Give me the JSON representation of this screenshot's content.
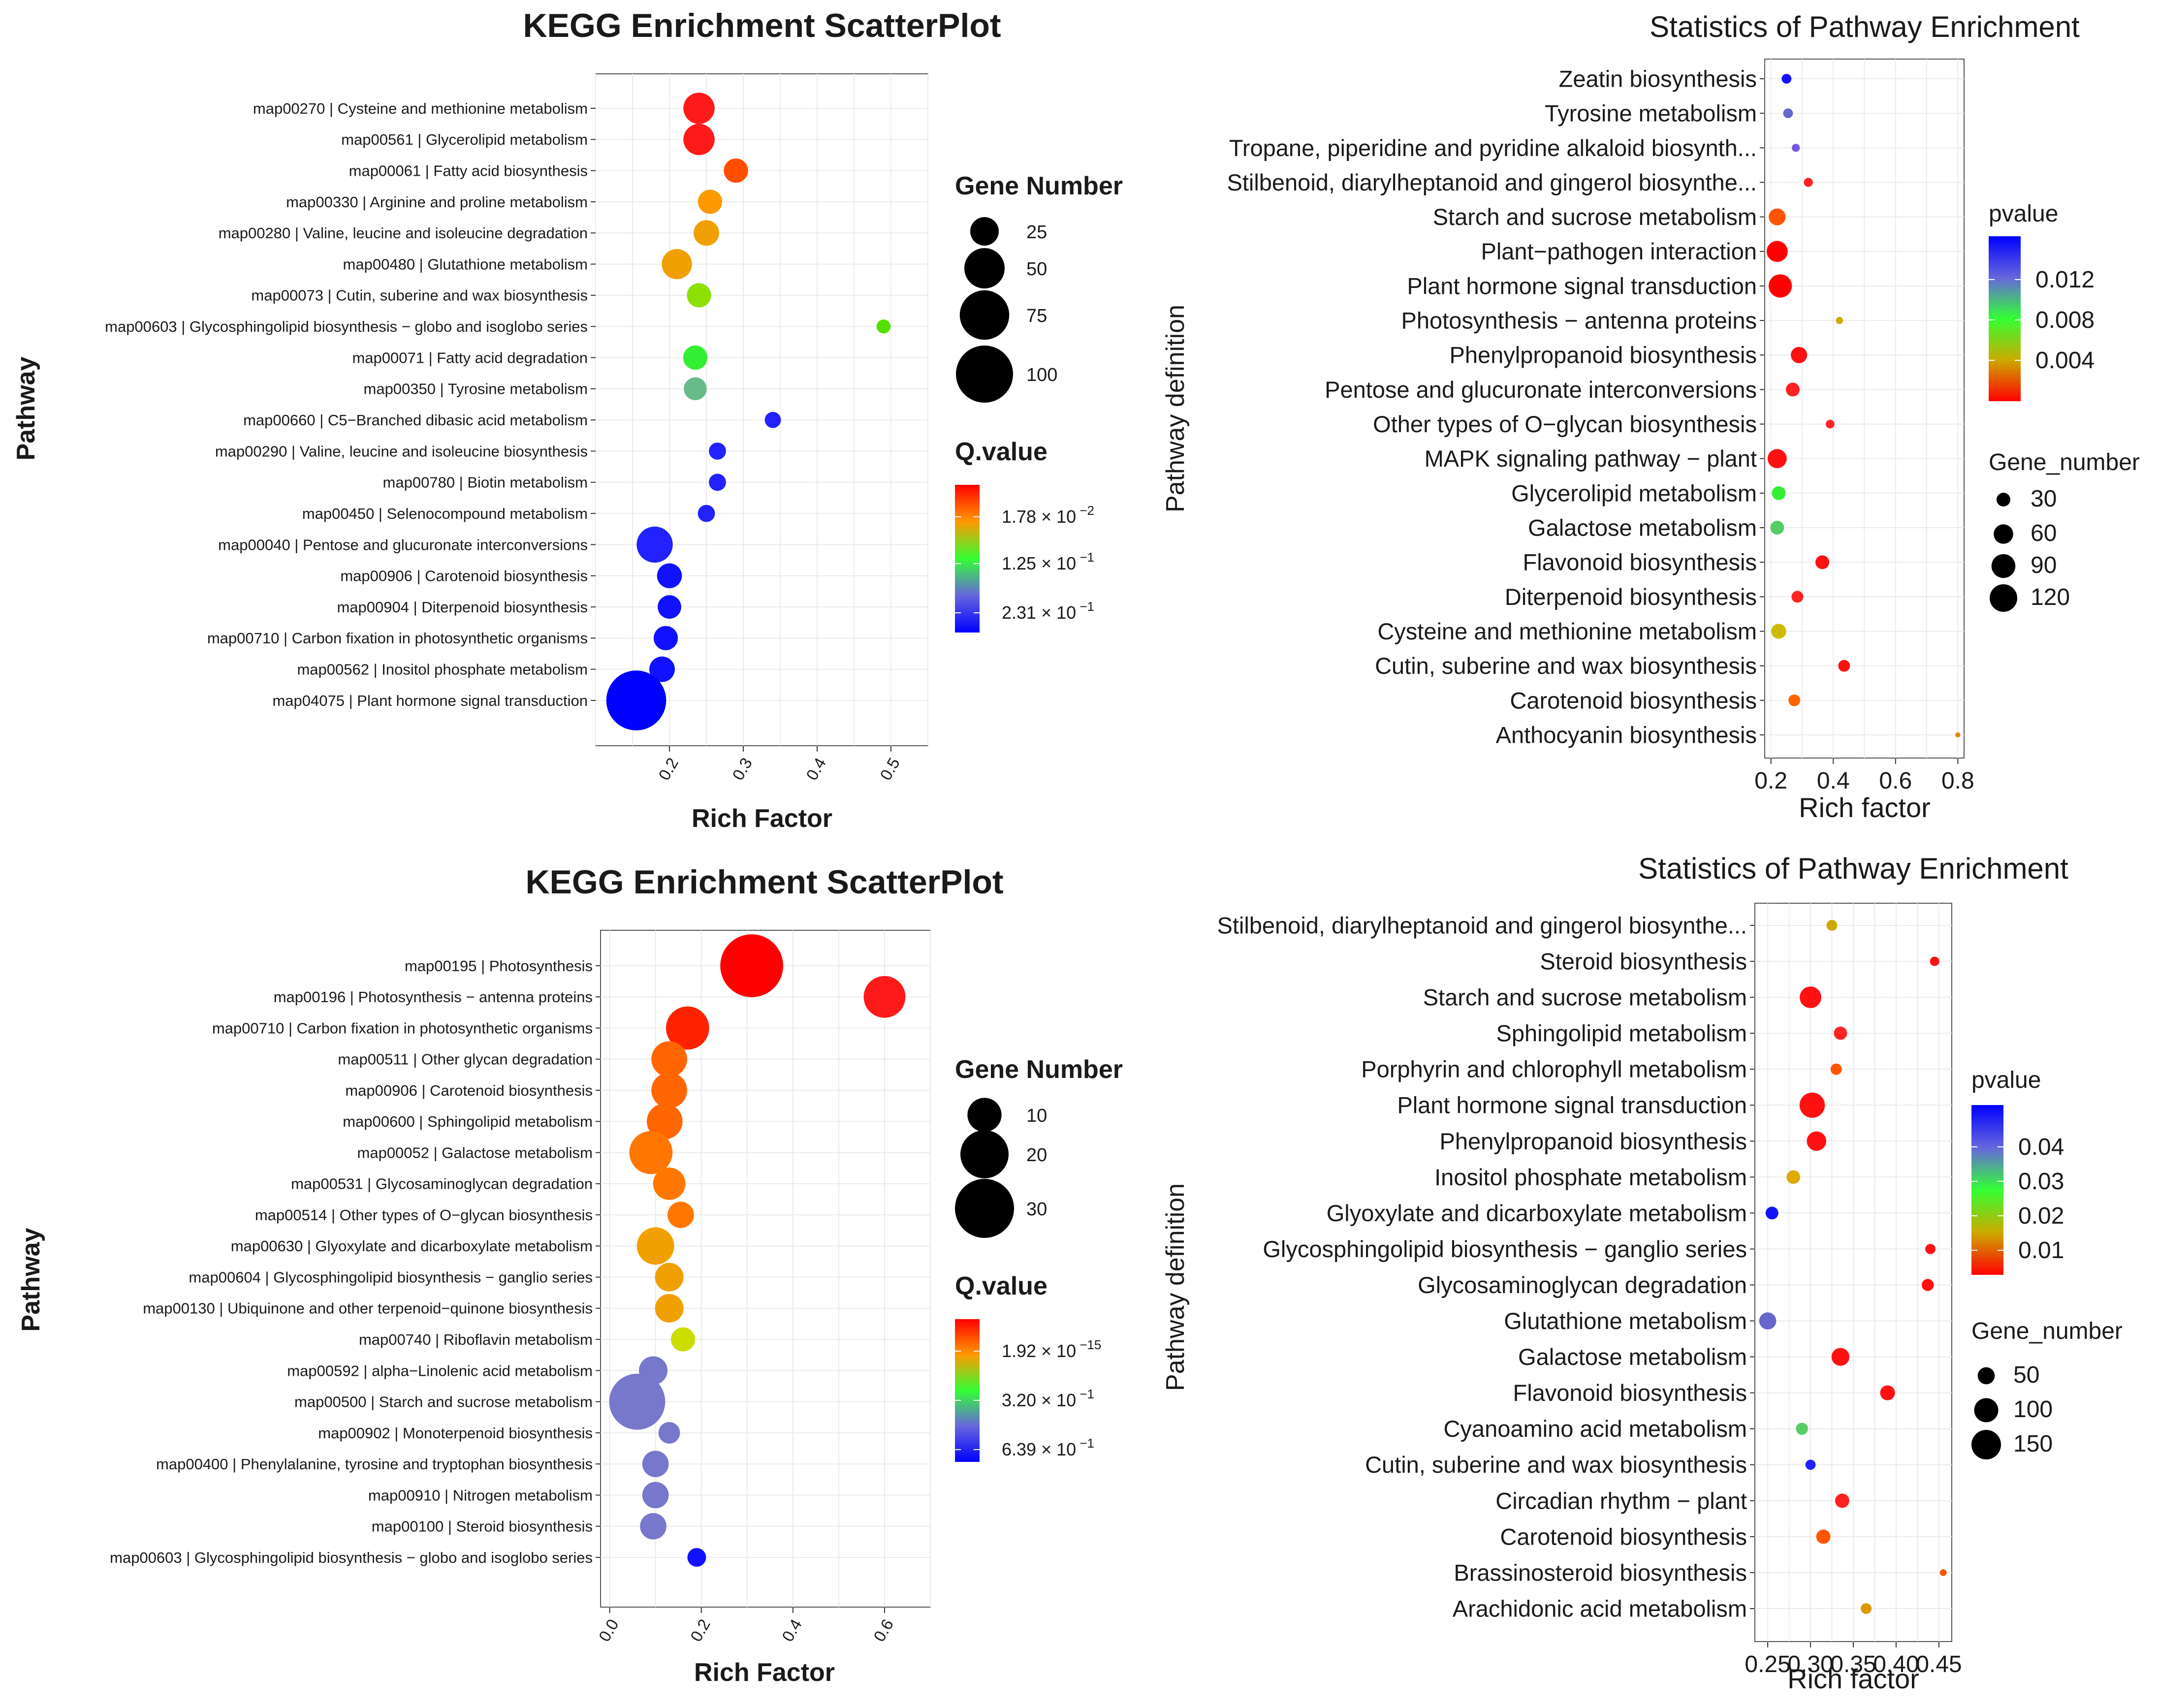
{
  "chart_data": [
    {
      "panel": "top-left",
      "type": "scatter",
      "title": "KEGG Enrichment ScatterPlot",
      "xlabel": "Rich Factor",
      "ylabel": "Pathway",
      "xticks": [
        "0.2",
        "0.3",
        "0.4",
        "0.5"
      ],
      "xlim": [
        0.1,
        0.55
      ],
      "grid": true,
      "size_legend": {
        "title": "Gene Number",
        "entries": [
          "25",
          "50",
          "75",
          "100"
        ],
        "values": [
          25,
          50,
          75,
          100
        ]
      },
      "color_legend": {
        "title": "Q.value",
        "labels": [
          {
            "base": "1.78 × 10",
            "exp": "−2"
          },
          {
            "base": "1.25 × 10",
            "exp": "−1"
          },
          {
            "base": "2.31 × 10",
            "exp": "−1"
          }
        ],
        "colors": [
          "#ff0000",
          "#ff9900",
          "#33ff33",
          "#6666dd",
          "#0000ff"
        ]
      },
      "points": [
        {
          "label": "map00270 | Cysteine and methionine metabolism",
          "x": 0.24,
          "genes": 30,
          "color": "#ff1a1a"
        },
        {
          "label": "map00561 | Glycerolipid metabolism",
          "x": 0.24,
          "genes": 30,
          "color": "#ff1a1a"
        },
        {
          "label": "map00061 | Fatty acid biosynthesis",
          "x": 0.29,
          "genes": 18,
          "color": "#ff4d00"
        },
        {
          "label": "map00330 | Arginine and proline metabolism",
          "x": 0.255,
          "genes": 18,
          "color": "#ff9900"
        },
        {
          "label": "map00280 | Valine, leucine and isoleucine degradation",
          "x": 0.25,
          "genes": 20,
          "color": "#f0a000"
        },
        {
          "label": "map00480 | Glutathione metabolism",
          "x": 0.21,
          "genes": 28,
          "color": "#f0a000"
        },
        {
          "label": "map00073 | Cutin, suberine and wax biosynthesis",
          "x": 0.24,
          "genes": 18,
          "color": "#8ee000"
        },
        {
          "label": "map00603 | Glycosphingolipid biosynthesis − globo and isoglobo series",
          "x": 0.49,
          "genes": 6,
          "color": "#55e000"
        },
        {
          "label": "map00071 | Fatty acid degradation",
          "x": 0.235,
          "genes": 18,
          "color": "#33ee33"
        },
        {
          "label": "map00350 | Tyrosine metabolism",
          "x": 0.235,
          "genes": 16,
          "color": "#66bb88"
        },
        {
          "label": "map00660 | C5−Branched dibasic acid metabolism",
          "x": 0.34,
          "genes": 8,
          "color": "#2222ff"
        },
        {
          "label": "map00290 | Valine, leucine and isoleucine biosynthesis",
          "x": 0.265,
          "genes": 9,
          "color": "#2222ff"
        },
        {
          "label": "map00780 | Biotin metabolism",
          "x": 0.265,
          "genes": 9,
          "color": "#2222ff"
        },
        {
          "label": "map00450 | Selenocompound metabolism",
          "x": 0.25,
          "genes": 9,
          "color": "#2222ff"
        },
        {
          "label": "map00040 | Pentose and glucuronate interconversions",
          "x": 0.18,
          "genes": 40,
          "color": "#2222ff"
        },
        {
          "label": "map00906 | Carotenoid biosynthesis",
          "x": 0.2,
          "genes": 19,
          "color": "#1111ff"
        },
        {
          "label": "map00904 | Diterpenoid biosynthesis",
          "x": 0.2,
          "genes": 17,
          "color": "#1111ff"
        },
        {
          "label": "map00710 | Carbon fixation in photosynthetic organisms",
          "x": 0.195,
          "genes": 18,
          "color": "#1111ff"
        },
        {
          "label": "map00562 | Inositol phosphate metabolism",
          "x": 0.19,
          "genes": 20,
          "color": "#1111ff"
        },
        {
          "label": "map04075 | Plant hormone signal transduction",
          "x": 0.155,
          "genes": 110,
          "color": "#0000ff"
        }
      ]
    },
    {
      "panel": "top-right",
      "type": "scatter",
      "title": "Statistics of Pathway Enrichment",
      "xlabel": "Rich factor",
      "ylabel": "Pathway definition",
      "xticks": [
        "0.2",
        "0.4",
        "0.6",
        "0.8"
      ],
      "xlim": [
        0.18,
        0.82
      ],
      "grid": true,
      "color_legend": {
        "title": "pvalue",
        "labels": [
          "0.012",
          "0.008",
          "0.004"
        ],
        "colors": [
          "#0000ff",
          "#6666dd",
          "#33ff33",
          "#ccaa00",
          "#ff0000"
        ]
      },
      "size_legend": {
        "title": "Gene_number",
        "entries": [
          "30",
          "60",
          "90",
          "120"
        ],
        "values": [
          30,
          60,
          90,
          120
        ]
      },
      "points": [
        {
          "label": "Zeatin biosynthesis",
          "x": 0.25,
          "genes": 15,
          "color": "#1111ff"
        },
        {
          "label": "Tyrosine metabolism",
          "x": 0.255,
          "genes": 15,
          "color": "#6666cc"
        },
        {
          "label": "Tropane, piperidine and pyridine alkaloid biosynth...",
          "x": 0.28,
          "genes": 10,
          "color": "#7755dd"
        },
        {
          "label": "Stilbenoid, diarylheptanoid and gingerol biosynthe...",
          "x": 0.32,
          "genes": 13,
          "color": "#ff2222"
        },
        {
          "label": "Starch and sucrose metabolism",
          "x": 0.22,
          "genes": 45,
          "color": "#ff5500"
        },
        {
          "label": "Plant−pathogen interaction",
          "x": 0.22,
          "genes": 70,
          "color": "#ff0000"
        },
        {
          "label": "Plant hormone signal transduction",
          "x": 0.23,
          "genes": 85,
          "color": "#ff0000"
        },
        {
          "label": "Photosynthesis − antenna proteins",
          "x": 0.42,
          "genes": 8,
          "color": "#ccaa00"
        },
        {
          "label": "Phenylpropanoid biosynthesis",
          "x": 0.29,
          "genes": 42,
          "color": "#ff1111"
        },
        {
          "label": "Pentose and glucuronate interconversions",
          "x": 0.27,
          "genes": 30,
          "color": "#ff2222"
        },
        {
          "label": "Other types of O−glycan biosynthesis",
          "x": 0.39,
          "genes": 12,
          "color": "#ff2222"
        },
        {
          "label": "MAPK signaling pathway − plant",
          "x": 0.22,
          "genes": 58,
          "color": "#ff1111"
        },
        {
          "label": "Glycerolipid metabolism",
          "x": 0.225,
          "genes": 30,
          "color": "#33ee33"
        },
        {
          "label": "Galactose metabolism",
          "x": 0.22,
          "genes": 30,
          "color": "#55cc66"
        },
        {
          "label": "Flavonoid biosynthesis",
          "x": 0.365,
          "genes": 30,
          "color": "#ff1111"
        },
        {
          "label": "Diterpenoid biosynthesis",
          "x": 0.285,
          "genes": 22,
          "color": "#ff2222"
        },
        {
          "label": "Cysteine and methionine metabolism",
          "x": 0.225,
          "genes": 35,
          "color": "#ccbb00"
        },
        {
          "label": "Cutin, suberine and wax biosynthesis",
          "x": 0.435,
          "genes": 22,
          "color": "#ff1111"
        },
        {
          "label": "Carotenoid biosynthesis",
          "x": 0.275,
          "genes": 22,
          "color": "#ff6600"
        },
        {
          "label": "Anthocyanin biosynthesis",
          "x": 0.8,
          "genes": 4,
          "color": "#dd8800"
        }
      ]
    },
    {
      "panel": "bottom-left",
      "type": "scatter",
      "title": "KEGG Enrichment ScatterPlot",
      "xlabel": "Rich Factor",
      "ylabel": "Pathway",
      "xticks": [
        "0.0",
        "0.2",
        "0.4",
        "0.6"
      ],
      "xlim": [
        -0.02,
        0.7
      ],
      "grid": true,
      "size_legend": {
        "title": "Gene Number",
        "entries": [
          "10",
          "20",
          "30"
        ],
        "values": [
          10,
          20,
          30
        ]
      },
      "color_legend": {
        "title": "Q.value",
        "labels": [
          {
            "base": "1.92 × 10",
            "exp": "−15"
          },
          {
            "base": "3.20 × 10",
            "exp": "−1"
          },
          {
            "base": "6.39 × 10",
            "exp": "−1"
          }
        ],
        "colors": [
          "#ff0000",
          "#ff9900",
          "#33ff33",
          "#6666dd",
          "#0000ff"
        ]
      },
      "points": [
        {
          "label": "map00195 | Photosynthesis",
          "x": 0.31,
          "genes": 34,
          "color": "#ff0000"
        },
        {
          "label": "map00196 | Photosynthesis − antenna proteins",
          "x": 0.6,
          "genes": 15,
          "color": "#ff1a1a"
        },
        {
          "label": "map00710 | Carbon fixation in photosynthetic organisms",
          "x": 0.17,
          "genes": 16,
          "color": "#ff2200"
        },
        {
          "label": "map00511 | Other glycan degradation",
          "x": 0.13,
          "genes": 11,
          "color": "#ff6600"
        },
        {
          "label": "map00906 | Carotenoid biosynthesis",
          "x": 0.13,
          "genes": 11,
          "color": "#ff6600"
        },
        {
          "label": "map00600 | Sphingolipid metabolism",
          "x": 0.12,
          "genes": 11,
          "color": "#ff6600"
        },
        {
          "label": "map00052 | Galactose metabolism",
          "x": 0.09,
          "genes": 16,
          "color": "#ff7700"
        },
        {
          "label": "map00531 | Glycosaminoglycan degradation",
          "x": 0.13,
          "genes": 9,
          "color": "#ff7700"
        },
        {
          "label": "map00514 | Other types of O−glycan biosynthesis",
          "x": 0.155,
          "genes": 6,
          "color": "#ff7700"
        },
        {
          "label": "map00630 | Glyoxylate and dicarboxylate metabolism",
          "x": 0.1,
          "genes": 12,
          "color": "#f0a000"
        },
        {
          "label": "map00604 | Glycosphingolipid biosynthesis − ganglio series",
          "x": 0.13,
          "genes": 7,
          "color": "#f0a000"
        },
        {
          "label": "map00130 | Ubiquinone and other terpenoid−quinone biosynthesis",
          "x": 0.13,
          "genes": 7,
          "color": "#f0a000"
        },
        {
          "label": "map00740 | Riboflavin metabolism",
          "x": 0.16,
          "genes": 5,
          "color": "#ccdd00"
        },
        {
          "label": "map00592 | alpha−Linolenic acid metabolism",
          "x": 0.095,
          "genes": 7,
          "color": "#7777cc"
        },
        {
          "label": "map00500 | Starch and sucrose metabolism",
          "x": 0.06,
          "genes": 27,
          "color": "#7777cc"
        },
        {
          "label": "map00902 | Monoterpenoid biosynthesis",
          "x": 0.13,
          "genes": 4,
          "color": "#7777cc"
        },
        {
          "label": "map00400 | Phenylalanine, tyrosine and tryptophan biosynthesis",
          "x": 0.1,
          "genes": 6,
          "color": "#7777cc"
        },
        {
          "label": "map00910 | Nitrogen metabolism",
          "x": 0.1,
          "genes": 6,
          "color": "#7777cc"
        },
        {
          "label": "map00100 | Steroid biosynthesis",
          "x": 0.095,
          "genes": 6,
          "color": "#7777cc"
        },
        {
          "label": "map00603 | Glycosphingolipid biosynthesis − globo and isoglobo series",
          "x": 0.19,
          "genes": 3,
          "color": "#1111ff"
        }
      ]
    },
    {
      "panel": "bottom-right",
      "type": "scatter",
      "title": "Statistics of Pathway Enrichment",
      "xlabel": "Rich factor",
      "ylabel": "Pathway definition",
      "xticks": [
        "0.25",
        "0.30",
        "0.35",
        "0.40",
        "0.45"
      ],
      "xlim": [
        0.235,
        0.465
      ],
      "grid": true,
      "color_legend": {
        "title": "pvalue",
        "labels": [
          "0.04",
          "0.03",
          "0.02",
          "0.01"
        ],
        "colors": [
          "#0000ff",
          "#6666dd",
          "#33ff33",
          "#ccaa00",
          "#ff0000"
        ]
      },
      "size_legend": {
        "title": "Gene_number",
        "entries": [
          "50",
          "100",
          "150"
        ],
        "values": [
          50,
          100,
          150
        ]
      },
      "points": [
        {
          "label": "Stilbenoid, diarylheptanoid and gingerol biosynthe...",
          "x": 0.325,
          "genes": 20,
          "color": "#ccaa00"
        },
        {
          "label": "Steroid biosynthesis",
          "x": 0.445,
          "genes": 15,
          "color": "#ff1111"
        },
        {
          "label": "Starch and sucrose metabolism",
          "x": 0.3,
          "genes": 80,
          "color": "#ff1111"
        },
        {
          "label": "Sphingolipid metabolism",
          "x": 0.335,
          "genes": 30,
          "color": "#ff2222"
        },
        {
          "label": "Porphyrin and chlorophyll metabolism",
          "x": 0.33,
          "genes": 22,
          "color": "#ff5500"
        },
        {
          "label": "Plant hormone signal transduction",
          "x": 0.302,
          "genes": 110,
          "color": "#ff1111"
        },
        {
          "label": "Phenylpropanoid biosynthesis",
          "x": 0.307,
          "genes": 65,
          "color": "#ff1111"
        },
        {
          "label": "Inositol phosphate metabolism",
          "x": 0.28,
          "genes": 32,
          "color": "#ddaa00"
        },
        {
          "label": "Glyoxylate and dicarboxylate metabolism",
          "x": 0.255,
          "genes": 28,
          "color": "#1111ff"
        },
        {
          "label": "Glycosphingolipid biosynthesis − ganglio series",
          "x": 0.44,
          "genes": 18,
          "color": "#ff1111"
        },
        {
          "label": "Glycosaminoglycan degradation",
          "x": 0.437,
          "genes": 25,
          "color": "#ff1111"
        },
        {
          "label": "Glutathione metabolism",
          "x": 0.25,
          "genes": 50,
          "color": "#6666cc"
        },
        {
          "label": "Galactose metabolism",
          "x": 0.335,
          "genes": 55,
          "color": "#ff1111"
        },
        {
          "label": "Flavonoid biosynthesis",
          "x": 0.39,
          "genes": 38,
          "color": "#ff1111"
        },
        {
          "label": "Cyanoamino acid metabolism",
          "x": 0.29,
          "genes": 25,
          "color": "#55cc66"
        },
        {
          "label": "Cutin, suberine and wax biosynthesis",
          "x": 0.3,
          "genes": 18,
          "color": "#2222ff"
        },
        {
          "label": "Circadian rhythm − plant",
          "x": 0.337,
          "genes": 35,
          "color": "#ff2222"
        },
        {
          "label": "Carotenoid biosynthesis",
          "x": 0.315,
          "genes": 35,
          "color": "#ff5500"
        },
        {
          "label": "Brassinosteroid biosynthesis",
          "x": 0.455,
          "genes": 8,
          "color": "#ff5500"
        },
        {
          "label": "Arachidonic acid metabolism",
          "x": 0.365,
          "genes": 20,
          "color": "#dd9900"
        }
      ]
    }
  ]
}
